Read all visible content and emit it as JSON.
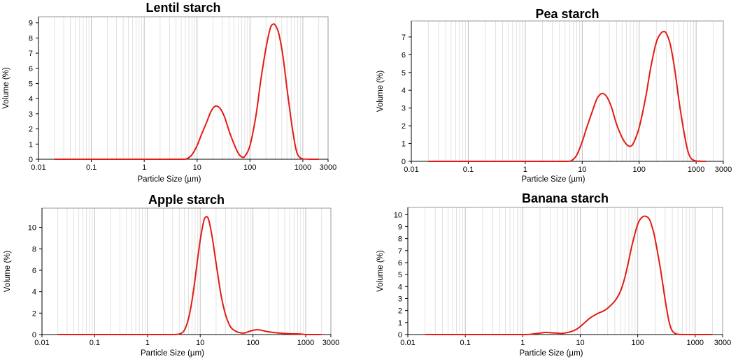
{
  "colors": {
    "curve": "#e41b14",
    "grid": "#b8b8b8"
  },
  "chart_data": [
    {
      "type": "line",
      "title": "Lentil starch",
      "xlabel": "Particle Size (µm)",
      "ylabel": "Volume (%)",
      "xscale": "log",
      "xlim": [
        0.01,
        3000
      ],
      "ylim": [
        0,
        9.4
      ],
      "xticks": [
        0.01,
        0.1,
        1,
        10,
        100,
        1000,
        3000
      ],
      "xtick_labels": [
        "0.01",
        "0.1",
        "1",
        "10",
        "100",
        "1000",
        "3000"
      ],
      "yticks": [
        0,
        1,
        2,
        3,
        4,
        5,
        6,
        7,
        8,
        9
      ],
      "ytick_labels": [
        "0",
        "1",
        "2",
        "3",
        "4",
        "5",
        "6",
        "7",
        "8",
        "9"
      ],
      "grid": true,
      "series": [
        {
          "x": [
            0.02,
            0.1,
            1,
            5,
            6.5,
            8,
            10,
            12,
            15,
            18,
            21,
            24,
            28,
            33,
            40,
            50,
            60,
            70,
            80,
            100,
            130,
            160,
            200,
            240,
            270,
            300,
            350,
            420,
            500,
            600,
            700,
            800,
            1000,
            1500,
            2000
          ],
          "y": [
            0,
            0,
            0,
            0,
            0.05,
            0.3,
            0.9,
            1.6,
            2.4,
            3.1,
            3.45,
            3.5,
            3.3,
            2.8,
            1.9,
            1.0,
            0.4,
            0.15,
            0.2,
            0.9,
            2.9,
            5.2,
            7.3,
            8.6,
            8.9,
            8.85,
            8.3,
            6.8,
            4.7,
            2.6,
            1.1,
            0.3,
            0.02,
            0,
            0
          ]
        }
      ]
    },
    {
      "type": "line",
      "title": "Pea starch",
      "xlabel": "Particle Size (µm)",
      "ylabel": "Volume (%)",
      "xscale": "log",
      "xlim": [
        0.01,
        3000
      ],
      "ylim": [
        0,
        7.9
      ],
      "xticks": [
        0.01,
        0.1,
        1,
        10,
        100,
        1000,
        3000
      ],
      "xtick_labels": [
        "0.01",
        "0.1",
        "1",
        "10",
        "100",
        "1000",
        "3000"
      ],
      "yticks": [
        0,
        1,
        2,
        3,
        4,
        5,
        6,
        7
      ],
      "ytick_labels": [
        "0",
        "1",
        "2",
        "3",
        "4",
        "5",
        "6",
        "7"
      ],
      "grid": true,
      "series": [
        {
          "x": [
            0.02,
            0.1,
            1,
            5,
            6.5,
            8,
            10,
            12,
            15,
            18,
            21,
            24,
            28,
            33,
            40,
            50,
            60,
            70,
            80,
            100,
            130,
            160,
            200,
            240,
            270,
            300,
            350,
            420,
            500,
            600,
            700,
            800,
            1000,
            1500
          ],
          "y": [
            0,
            0,
            0,
            0,
            0.05,
            0.35,
            1.1,
            1.9,
            2.8,
            3.5,
            3.78,
            3.8,
            3.55,
            3.0,
            2.1,
            1.35,
            0.95,
            0.85,
            1.05,
            1.9,
            3.6,
            5.3,
            6.7,
            7.2,
            7.3,
            7.2,
            6.6,
            5.2,
            3.4,
            1.8,
            0.7,
            0.2,
            0.02,
            0
          ]
        }
      ]
    },
    {
      "type": "line",
      "title": "Apple starch",
      "xlabel": "Particle Size (µm)",
      "ylabel": "Volume (%)",
      "xscale": "log",
      "xlim": [
        0.01,
        3000
      ],
      "ylim": [
        0,
        11.8
      ],
      "xticks": [
        0.01,
        0.1,
        1,
        10,
        100,
        1000,
        3000
      ],
      "xtick_labels": [
        "0.01",
        "0.1",
        "1",
        "10",
        "100",
        "1000",
        "3000"
      ],
      "yticks": [
        0,
        2,
        4,
        6,
        8,
        10
      ],
      "ytick_labels": [
        "0",
        "2",
        "4",
        "6",
        "8",
        "10"
      ],
      "grid": true,
      "series": [
        {
          "x": [
            0.02,
            0.1,
            1,
            3,
            4,
            5,
            6,
            7,
            8,
            9,
            10,
            11,
            12,
            13,
            14,
            15,
            17,
            19,
            22,
            25,
            30,
            35,
            40,
            50,
            60,
            70,
            80,
            100,
            120,
            140,
            160,
            200,
            300,
            500,
            800,
            1000,
            2000
          ],
          "y": [
            0,
            0,
            0,
            0,
            0.05,
            0.4,
            1.5,
            3.2,
            5.2,
            7.2,
            8.8,
            10.0,
            10.8,
            11.0,
            10.9,
            10.4,
            9.0,
            7.4,
            5.3,
            3.6,
            1.9,
            1.0,
            0.55,
            0.25,
            0.15,
            0.15,
            0.25,
            0.4,
            0.45,
            0.42,
            0.35,
            0.25,
            0.15,
            0.08,
            0.05,
            0,
            0
          ]
        }
      ]
    },
    {
      "type": "line",
      "title": "Banana starch",
      "xlabel": "Particle Size (µm)",
      "ylabel": "Volume (%)",
      "xscale": "log",
      "xlim": [
        0.01,
        3000
      ],
      "ylim": [
        0,
        10.6
      ],
      "xticks": [
        0.01,
        0.1,
        1,
        10,
        100,
        1000,
        3000
      ],
      "xtick_labels": [
        "0.01",
        "0.1",
        "1",
        "10",
        "100",
        "1000",
        "3000"
      ],
      "yticks": [
        0,
        1,
        2,
        3,
        4,
        5,
        6,
        7,
        8,
        9,
        10
      ],
      "ytick_labels": [
        "0",
        "1",
        "2",
        "3",
        "4",
        "5",
        "6",
        "7",
        "8",
        "9",
        "10"
      ],
      "grid": true,
      "series": [
        {
          "x": [
            0.02,
            0.1,
            1,
            1.5,
            2,
            2.5,
            3,
            4,
            5,
            7,
            9,
            12,
            15,
            20,
            25,
            30,
            40,
            50,
            60,
            70,
            80,
            100,
            120,
            140,
            160,
            180,
            200,
            250,
            300,
            350,
            400,
            500,
            700,
            1000,
            2000
          ],
          "y": [
            0,
            0,
            0,
            0.05,
            0.12,
            0.18,
            0.15,
            0.12,
            0.1,
            0.25,
            0.5,
            1.0,
            1.4,
            1.75,
            1.95,
            2.2,
            2.8,
            3.6,
            4.8,
            6.2,
            7.5,
            9.2,
            9.8,
            9.85,
            9.6,
            8.9,
            8.0,
            5.4,
            2.9,
            1.1,
            0.3,
            0.02,
            0,
            0,
            0
          ]
        }
      ]
    }
  ]
}
